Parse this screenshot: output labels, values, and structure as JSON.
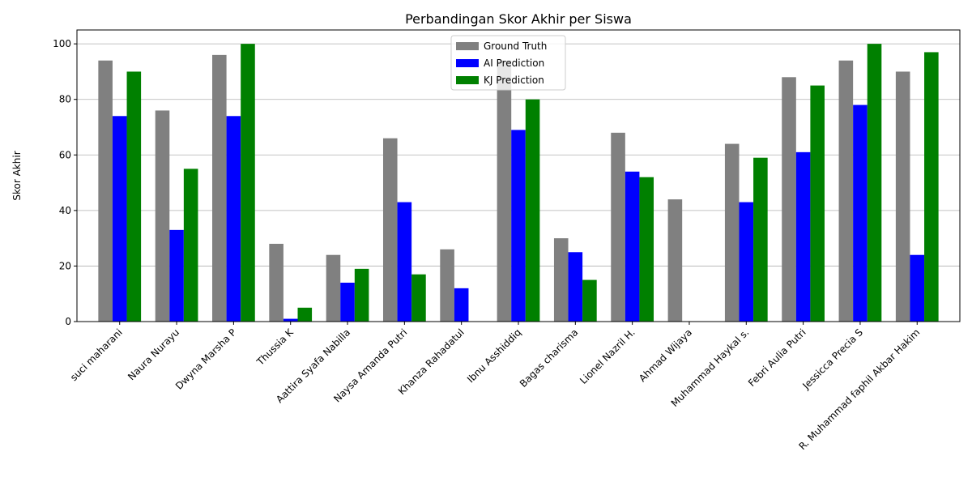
{
  "chart_data": {
    "type": "bar",
    "title": "Perbandingan Skor Akhir per Siswa",
    "xlabel": "",
    "ylabel": "Skor Akhir",
    "ylim": [
      0,
      105
    ],
    "yticks": [
      0,
      20,
      40,
      60,
      80,
      100
    ],
    "grid": "y",
    "legend_position": "top-center",
    "categories": [
      "suci maharani",
      "Naura Nurayu",
      "Dwyna Marsha P",
      "Thussia K",
      "Aattira Syafa Nabilla",
      "Naysa Amanda Putri",
      "Khanza Rahadatul",
      "Ibnu Asshiddiq",
      "Bagas charisma",
      "Lionel Nazril H.",
      "Ahmad Wijaya",
      "Muhammad Haykal s.",
      "Febri Aulia Putri",
      "Jessicca Precia S",
      "R. Muhammad faphil Akbar Hakim"
    ],
    "series": [
      {
        "name": "Ground Truth",
        "color": "#808080",
        "values": [
          94,
          76,
          96,
          28,
          24,
          66,
          26,
          94,
          30,
          68,
          44,
          64,
          88,
          94,
          90
        ]
      },
      {
        "name": "AI Prediction",
        "color": "#0000ff",
        "values": [
          74,
          33,
          74,
          1,
          14,
          43,
          12,
          69,
          25,
          54,
          0,
          43,
          61,
          78,
          24
        ]
      },
      {
        "name": "KJ Prediction",
        "color": "#008000",
        "values": [
          90,
          55,
          100,
          5,
          19,
          17,
          0,
          80,
          15,
          52,
          0,
          59,
          85,
          100,
          97
        ]
      }
    ]
  }
}
